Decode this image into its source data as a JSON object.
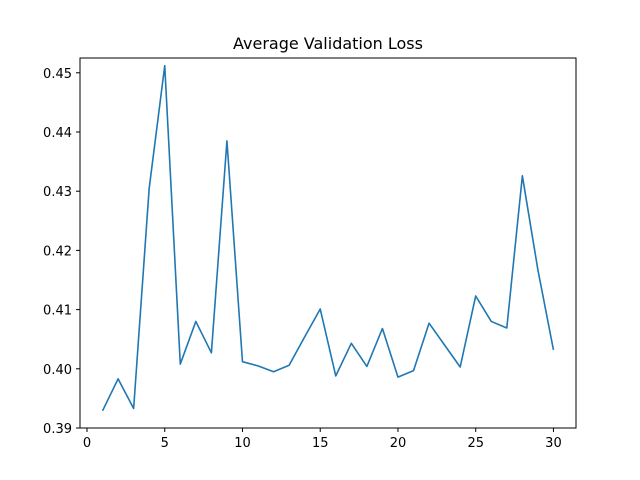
{
  "chart_data": {
    "type": "line",
    "title": "Average Validation Loss",
    "xlabel": "",
    "ylabel": "",
    "xlim": [
      -0.45,
      31.45
    ],
    "ylim": [
      0.39,
      0.4525
    ],
    "xticks": [
      0,
      5,
      10,
      15,
      20,
      25,
      30
    ],
    "xtick_labels": [
      "0",
      "5",
      "10",
      "15",
      "20",
      "25",
      "30"
    ],
    "yticks": [
      0.39,
      0.4,
      0.41,
      0.42,
      0.43,
      0.44,
      0.45
    ],
    "ytick_labels": [
      "0.39",
      "0.40",
      "0.41",
      "0.42",
      "0.43",
      "0.44",
      "0.45"
    ],
    "grid": false,
    "series": [
      {
        "color": "#1f77b4",
        "x": [
          1,
          2,
          3,
          4,
          5,
          6,
          7,
          8,
          9,
          10,
          11,
          12,
          13,
          14,
          15,
          16,
          17,
          18,
          19,
          20,
          21,
          22,
          23,
          24,
          25,
          26,
          27,
          28,
          29,
          30
        ],
        "y": [
          0.3929,
          0.3983,
          0.3933,
          0.4305,
          0.4512,
          0.4008,
          0.408,
          0.4027,
          0.4385,
          0.4012,
          0.4005,
          0.3995,
          0.4006,
          0.4054,
          0.4101,
          0.3988,
          0.4043,
          0.4004,
          0.4068,
          0.3986,
          0.3997,
          0.4077,
          0.404,
          0.4003,
          0.4123,
          0.408,
          0.4069,
          0.4326,
          0.4167,
          0.4032
        ]
      }
    ]
  }
}
